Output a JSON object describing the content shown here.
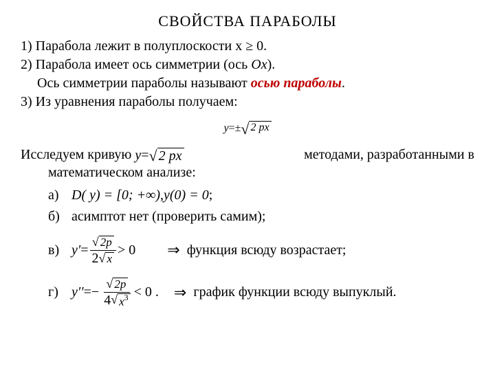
{
  "title": "СВОЙСТВА  ПАРАБОЛЫ",
  "prop1_a": "1) Парабола лежит в полуплоскости  x ",
  "prop1_b": " 0.",
  "geq": "≥",
  "prop2_a": "2) Парабола имеет ось симметрии (ось  ",
  "prop2_ox": "Ox",
  "prop2_b": ").",
  "prop2_line2_a": "Ось симметрии параболы называют ",
  "prop2_axis": "осью параболы",
  "prop2_line2_b": ".",
  "prop3": "3) Из уравнения параболы получаем:",
  "formula_y": "y",
  "formula_eq": " = ",
  "formula_pm": "±",
  "formula_rad": "2 px",
  "research_a": "Исследуем  кривую   ",
  "research_mid": "   методами,  разработанными  в",
  "research_b": "математическом анализе:",
  "item_a_label": "а)",
  "item_a_dy": "D( y) = [0;  +∞)",
  "comma": " ,   ",
  "item_a_y0": "y(0) = 0",
  "semicolon": " ;",
  "item_b_label": "б)",
  "item_b_text": "асимптот нет (проверить самим);",
  "item_c_label": "в)",
  "item_c_yprime": "y′",
  "item_c_eq": " = ",
  "item_c_num": "2p",
  "item_c_den_2": "2",
  "item_c_den_x": "x",
  "item_c_gt": " > 0",
  "arrow": "⇒",
  "item_c_text": "функция всюду возрастает;",
  "item_d_label": "г)",
  "item_d_ypp": "y′′",
  "item_d_eq": " = ",
  "item_d_minus": "−",
  "item_d_num": "2p",
  "item_d_den_4": "4",
  "item_d_den_x3_x": "x",
  "item_d_den_x3_3": "3",
  "item_d_lt": " < 0 .",
  "item_d_text": "график функции всюду выпуклый.",
  "colors": {
    "accent": "#c00000",
    "text": "#000000",
    "bg": "#ffffff"
  }
}
